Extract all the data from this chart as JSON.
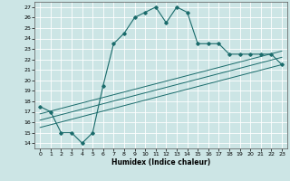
{
  "xlabel": "Humidex (Indice chaleur)",
  "bg_color": "#cce5e5",
  "grid_color": "#ffffff",
  "line_color": "#1a6b6b",
  "xlim": [
    -0.5,
    23.5
  ],
  "ylim": [
    13.5,
    27.5
  ],
  "yticks": [
    14,
    15,
    16,
    17,
    18,
    19,
    20,
    21,
    22,
    23,
    24,
    25,
    26,
    27
  ],
  "xticks": [
    0,
    1,
    2,
    3,
    4,
    5,
    6,
    7,
    8,
    9,
    10,
    11,
    12,
    13,
    14,
    15,
    16,
    17,
    18,
    19,
    20,
    21,
    22,
    23
  ],
  "main_x": [
    0,
    1,
    2,
    3,
    4,
    5,
    6,
    7,
    8,
    9,
    10,
    11,
    12,
    13,
    14,
    15,
    16,
    17,
    18,
    19,
    20,
    21,
    22,
    23
  ],
  "main_y": [
    17.5,
    17.0,
    15.0,
    15.0,
    14.0,
    15.0,
    19.5,
    23.5,
    24.5,
    26.0,
    26.5,
    27.0,
    25.5,
    27.0,
    26.5,
    23.5,
    23.5,
    23.5,
    22.5,
    22.5,
    22.5,
    22.5,
    22.5,
    21.5
  ],
  "line1_x": [
    0,
    23
  ],
  "line1_y": [
    15.5,
    21.5
  ],
  "line2_x": [
    0,
    23
  ],
  "line2_y": [
    16.2,
    22.2
  ],
  "line3_x": [
    0,
    23
  ],
  "line3_y": [
    16.8,
    22.8
  ]
}
